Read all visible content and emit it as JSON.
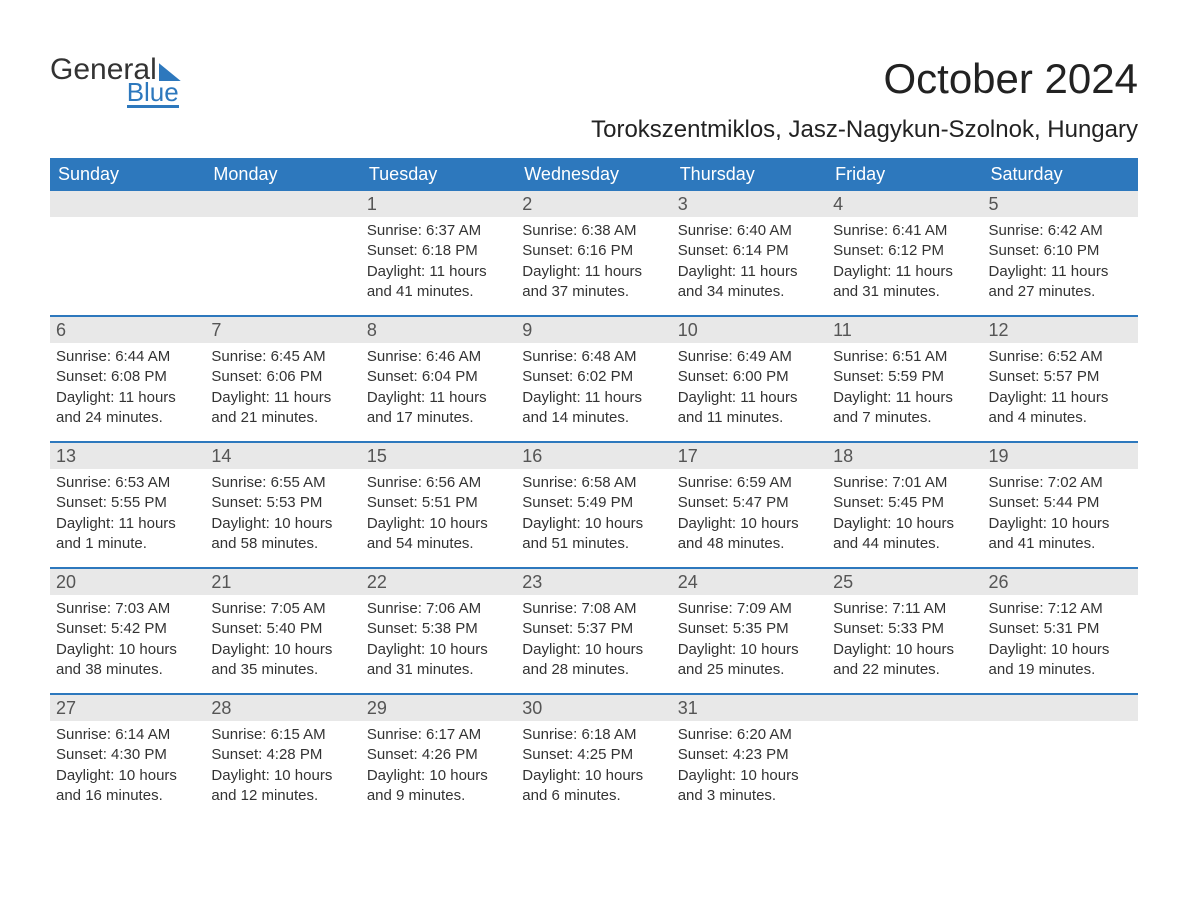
{
  "logo": {
    "text_top": "General",
    "text_bottom": "Blue",
    "accent_color": "#2d78bd"
  },
  "title": "October 2024",
  "subtitle": "Torokszentmiklos, Jasz-Nagykun-Szolnok, Hungary",
  "colors": {
    "header_bg": "#2d78bd",
    "header_text": "#ffffff",
    "daynum_bg": "#e8e8e8",
    "daynum_text": "#555555",
    "body_text": "#333333",
    "page_bg": "#ffffff",
    "row_divider": "#2d78bd"
  },
  "typography": {
    "title_fontsize": 42,
    "subtitle_fontsize": 24,
    "weekday_fontsize": 18,
    "daynum_fontsize": 18,
    "content_fontsize": 15,
    "font_family": "Arial"
  },
  "layout": {
    "columns": 7,
    "rows": 5,
    "cell_min_height": 124
  },
  "weekdays": [
    "Sunday",
    "Monday",
    "Tuesday",
    "Wednesday",
    "Thursday",
    "Friday",
    "Saturday"
  ],
  "weeks": [
    [
      {
        "day": "",
        "sunrise": "",
        "sunset": "",
        "daylight": ""
      },
      {
        "day": "",
        "sunrise": "",
        "sunset": "",
        "daylight": ""
      },
      {
        "day": "1",
        "sunrise": "Sunrise: 6:37 AM",
        "sunset": "Sunset: 6:18 PM",
        "daylight": "Daylight: 11 hours and 41 minutes."
      },
      {
        "day": "2",
        "sunrise": "Sunrise: 6:38 AM",
        "sunset": "Sunset: 6:16 PM",
        "daylight": "Daylight: 11 hours and 37 minutes."
      },
      {
        "day": "3",
        "sunrise": "Sunrise: 6:40 AM",
        "sunset": "Sunset: 6:14 PM",
        "daylight": "Daylight: 11 hours and 34 minutes."
      },
      {
        "day": "4",
        "sunrise": "Sunrise: 6:41 AM",
        "sunset": "Sunset: 6:12 PM",
        "daylight": "Daylight: 11 hours and 31 minutes."
      },
      {
        "day": "5",
        "sunrise": "Sunrise: 6:42 AM",
        "sunset": "Sunset: 6:10 PM",
        "daylight": "Daylight: 11 hours and 27 minutes."
      }
    ],
    [
      {
        "day": "6",
        "sunrise": "Sunrise: 6:44 AM",
        "sunset": "Sunset: 6:08 PM",
        "daylight": "Daylight: 11 hours and 24 minutes."
      },
      {
        "day": "7",
        "sunrise": "Sunrise: 6:45 AM",
        "sunset": "Sunset: 6:06 PM",
        "daylight": "Daylight: 11 hours and 21 minutes."
      },
      {
        "day": "8",
        "sunrise": "Sunrise: 6:46 AM",
        "sunset": "Sunset: 6:04 PM",
        "daylight": "Daylight: 11 hours and 17 minutes."
      },
      {
        "day": "9",
        "sunrise": "Sunrise: 6:48 AM",
        "sunset": "Sunset: 6:02 PM",
        "daylight": "Daylight: 11 hours and 14 minutes."
      },
      {
        "day": "10",
        "sunrise": "Sunrise: 6:49 AM",
        "sunset": "Sunset: 6:00 PM",
        "daylight": "Daylight: 11 hours and 11 minutes."
      },
      {
        "day": "11",
        "sunrise": "Sunrise: 6:51 AM",
        "sunset": "Sunset: 5:59 PM",
        "daylight": "Daylight: 11 hours and 7 minutes."
      },
      {
        "day": "12",
        "sunrise": "Sunrise: 6:52 AM",
        "sunset": "Sunset: 5:57 PM",
        "daylight": "Daylight: 11 hours and 4 minutes."
      }
    ],
    [
      {
        "day": "13",
        "sunrise": "Sunrise: 6:53 AM",
        "sunset": "Sunset: 5:55 PM",
        "daylight": "Daylight: 11 hours and 1 minute."
      },
      {
        "day": "14",
        "sunrise": "Sunrise: 6:55 AM",
        "sunset": "Sunset: 5:53 PM",
        "daylight": "Daylight: 10 hours and 58 minutes."
      },
      {
        "day": "15",
        "sunrise": "Sunrise: 6:56 AM",
        "sunset": "Sunset: 5:51 PM",
        "daylight": "Daylight: 10 hours and 54 minutes."
      },
      {
        "day": "16",
        "sunrise": "Sunrise: 6:58 AM",
        "sunset": "Sunset: 5:49 PM",
        "daylight": "Daylight: 10 hours and 51 minutes."
      },
      {
        "day": "17",
        "sunrise": "Sunrise: 6:59 AM",
        "sunset": "Sunset: 5:47 PM",
        "daylight": "Daylight: 10 hours and 48 minutes."
      },
      {
        "day": "18",
        "sunrise": "Sunrise: 7:01 AM",
        "sunset": "Sunset: 5:45 PM",
        "daylight": "Daylight: 10 hours and 44 minutes."
      },
      {
        "day": "19",
        "sunrise": "Sunrise: 7:02 AM",
        "sunset": "Sunset: 5:44 PM",
        "daylight": "Daylight: 10 hours and 41 minutes."
      }
    ],
    [
      {
        "day": "20",
        "sunrise": "Sunrise: 7:03 AM",
        "sunset": "Sunset: 5:42 PM",
        "daylight": "Daylight: 10 hours and 38 minutes."
      },
      {
        "day": "21",
        "sunrise": "Sunrise: 7:05 AM",
        "sunset": "Sunset: 5:40 PM",
        "daylight": "Daylight: 10 hours and 35 minutes."
      },
      {
        "day": "22",
        "sunrise": "Sunrise: 7:06 AM",
        "sunset": "Sunset: 5:38 PM",
        "daylight": "Daylight: 10 hours and 31 minutes."
      },
      {
        "day": "23",
        "sunrise": "Sunrise: 7:08 AM",
        "sunset": "Sunset: 5:37 PM",
        "daylight": "Daylight: 10 hours and 28 minutes."
      },
      {
        "day": "24",
        "sunrise": "Sunrise: 7:09 AM",
        "sunset": "Sunset: 5:35 PM",
        "daylight": "Daylight: 10 hours and 25 minutes."
      },
      {
        "day": "25",
        "sunrise": "Sunrise: 7:11 AM",
        "sunset": "Sunset: 5:33 PM",
        "daylight": "Daylight: 10 hours and 22 minutes."
      },
      {
        "day": "26",
        "sunrise": "Sunrise: 7:12 AM",
        "sunset": "Sunset: 5:31 PM",
        "daylight": "Daylight: 10 hours and 19 minutes."
      }
    ],
    [
      {
        "day": "27",
        "sunrise": "Sunrise: 6:14 AM",
        "sunset": "Sunset: 4:30 PM",
        "daylight": "Daylight: 10 hours and 16 minutes."
      },
      {
        "day": "28",
        "sunrise": "Sunrise: 6:15 AM",
        "sunset": "Sunset: 4:28 PM",
        "daylight": "Daylight: 10 hours and 12 minutes."
      },
      {
        "day": "29",
        "sunrise": "Sunrise: 6:17 AM",
        "sunset": "Sunset: 4:26 PM",
        "daylight": "Daylight: 10 hours and 9 minutes."
      },
      {
        "day": "30",
        "sunrise": "Sunrise: 6:18 AM",
        "sunset": "Sunset: 4:25 PM",
        "daylight": "Daylight: 10 hours and 6 minutes."
      },
      {
        "day": "31",
        "sunrise": "Sunrise: 6:20 AM",
        "sunset": "Sunset: 4:23 PM",
        "daylight": "Daylight: 10 hours and 3 minutes."
      },
      {
        "day": "",
        "sunrise": "",
        "sunset": "",
        "daylight": ""
      },
      {
        "day": "",
        "sunrise": "",
        "sunset": "",
        "daylight": ""
      }
    ]
  ]
}
